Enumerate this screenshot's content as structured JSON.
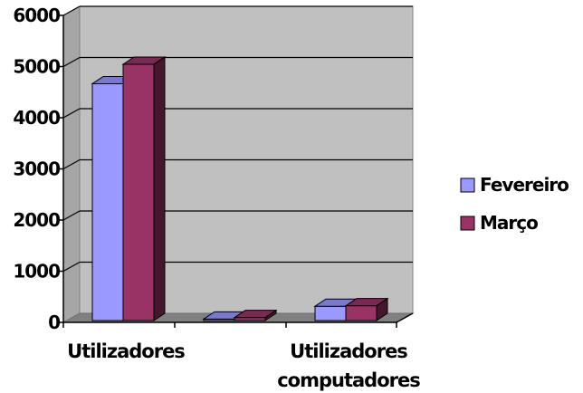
{
  "chart_data": {
    "type": "bar",
    "style": "3d-clustered-column",
    "categories": [
      [
        "Utilizadores"
      ],
      [
        "",
        ""
      ],
      [
        "Utilizadores",
        "computadores"
      ]
    ],
    "series": [
      {
        "name": "Fevereiro",
        "values": [
          4700,
          100,
          350
        ],
        "color": "#9999ff"
      },
      {
        "name": "Março",
        "values": [
          5080,
          130,
          360
        ],
        "color": "#993366"
      }
    ],
    "y_ticks": [
      "0",
      "1000",
      "2000",
      "3000",
      "4000",
      "5000",
      "6000"
    ],
    "ylim": [
      0,
      6000
    ],
    "grid": true,
    "legend_position": "right",
    "plot_wall_color": "#c0c0c0"
  }
}
